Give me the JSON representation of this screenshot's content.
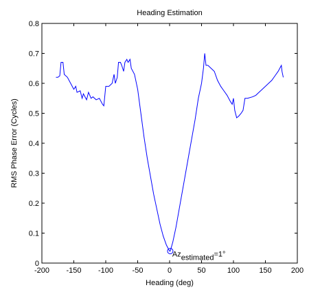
{
  "chart_data": {
    "type": "line",
    "title": "Heading Estimation",
    "xlabel": "Heading (deg)",
    "ylabel": "RMS Phase Error (Cycles)",
    "x": [
      -178,
      -175,
      -172,
      -170,
      -167,
      -165,
      -160,
      -155,
      -150,
      -147,
      -145,
      -140,
      -137,
      -135,
      -130,
      -127,
      -123,
      -120,
      -115,
      -110,
      -105,
      -103,
      -100,
      -95,
      -90,
      -87,
      -85,
      -82,
      -80,
      -77,
      -75,
      -72,
      -70,
      -67,
      -65,
      -62,
      -60,
      -55,
      -50,
      -45,
      -40,
      -35,
      -30,
      -25,
      -20,
      -15,
      -10,
      -5,
      0,
      1,
      5,
      10,
      15,
      20,
      25,
      30,
      35,
      40,
      45,
      50,
      53,
      55,
      57,
      60,
      65,
      70,
      75,
      80,
      85,
      90,
      95,
      98,
      100,
      102,
      105,
      108,
      112,
      115,
      118,
      122,
      130,
      135,
      140,
      145,
      150,
      155,
      160,
      165,
      170,
      175,
      176,
      178
    ],
    "series": [
      {
        "name": "RMS Phase Error",
        "color": "#0000ff",
        "values": [
          0.62,
          0.62,
          0.625,
          0.67,
          0.67,
          0.63,
          0.62,
          0.6,
          0.58,
          0.59,
          0.57,
          0.575,
          0.55,
          0.565,
          0.545,
          0.57,
          0.55,
          0.555,
          0.545,
          0.55,
          0.53,
          0.525,
          0.59,
          0.59,
          0.6,
          0.63,
          0.6,
          0.62,
          0.67,
          0.67,
          0.66,
          0.64,
          0.67,
          0.68,
          0.67,
          0.68,
          0.65,
          0.63,
          0.58,
          0.5,
          0.42,
          0.35,
          0.29,
          0.23,
          0.18,
          0.13,
          0.09,
          0.06,
          0.04,
          0.04,
          0.07,
          0.12,
          0.18,
          0.24,
          0.3,
          0.36,
          0.42,
          0.48,
          0.55,
          0.6,
          0.65,
          0.7,
          0.66,
          0.66,
          0.65,
          0.64,
          0.61,
          0.59,
          0.575,
          0.56,
          0.54,
          0.53,
          0.55,
          0.51,
          0.485,
          0.49,
          0.5,
          0.51,
          0.55,
          0.55,
          0.555,
          0.56,
          0.57,
          0.58,
          0.59,
          0.6,
          0.61,
          0.625,
          0.64,
          0.66,
          0.64,
          0.62
        ]
      }
    ],
    "marker": {
      "x": 1,
      "y": 0.04
    },
    "annotation": {
      "text": "Az",
      "subscript": "estimated",
      "suffix": "=1°"
    },
    "xlim": [
      -200,
      200
    ],
    "xticks": [
      -200,
      -150,
      -100,
      -50,
      0,
      50,
      100,
      150,
      200
    ],
    "ylim": [
      0,
      0.8
    ],
    "yticks": [
      0,
      0.1,
      0.2,
      0.3,
      0.4,
      0.5,
      0.6,
      0.7,
      0.8
    ]
  }
}
